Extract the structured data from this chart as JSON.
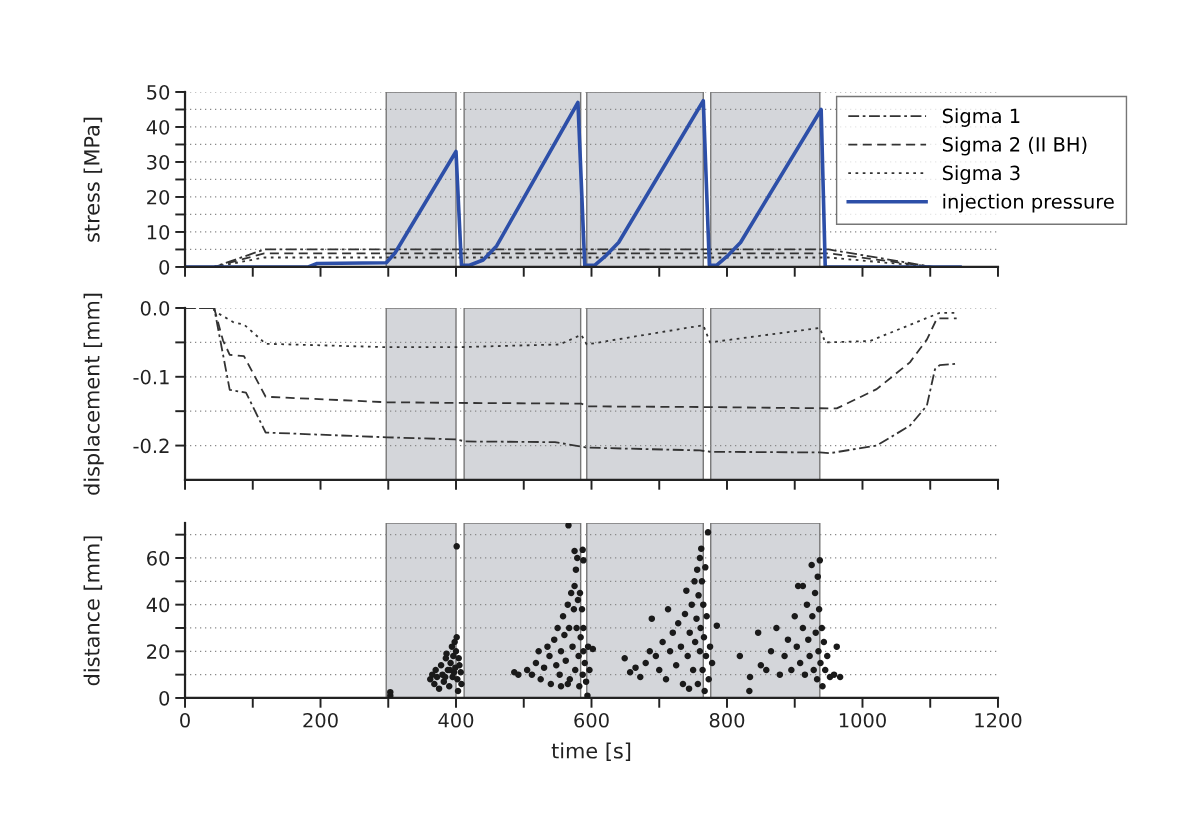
{
  "chart_data": [
    {
      "type": "line",
      "ylabel": "stress [MPa]",
      "xlim": [
        0,
        1200
      ],
      "ylim": [
        0,
        50
      ],
      "xticks": [
        {
          "value": 0,
          "label": null
        },
        {
          "value": 100,
          "label": null
        },
        {
          "value": 200,
          "label": null
        },
        {
          "value": 300,
          "label": null
        },
        {
          "value": 400,
          "label": null
        },
        {
          "value": 500,
          "label": null
        },
        {
          "value": 600,
          "label": null
        },
        {
          "value": 700,
          "label": null
        },
        {
          "value": 800,
          "label": null
        },
        {
          "value": 900,
          "label": null
        },
        {
          "value": 1000,
          "label": null
        },
        {
          "value": 1100,
          "label": null
        },
        {
          "value": 1200,
          "label": null
        }
      ],
      "yticks": [
        0,
        {
          "value": 5,
          "label": null
        },
        10,
        {
          "value": 15,
          "label": null
        },
        20,
        {
          "value": 25,
          "label": null
        },
        30,
        {
          "value": 35,
          "label": null
        },
        40,
        {
          "value": 45,
          "label": null
        },
        50
      ],
      "tick_labels": "y",
      "grid": "y",
      "legend": "top right",
      "bands": [
        {
          "axis": "x",
          "from": 297,
          "to": 400,
          "color": "#d4d6da"
        },
        {
          "axis": "x",
          "from": 412,
          "to": 584,
          "color": "#d4d6da"
        },
        {
          "axis": "x",
          "from": 593,
          "to": 765,
          "color": "#d4d6da"
        },
        {
          "axis": "x",
          "from": 776,
          "to": 937,
          "color": "#d4d6da"
        }
      ],
      "series": [
        {
          "name": "Sigma 1",
          "color": "#333333",
          "line_style": "dashdot",
          "x": [
            0,
            43,
            117,
            950,
            1104,
            1140
          ],
          "values": [
            0,
            0,
            5.0,
            5.0,
            0,
            0
          ]
        },
        {
          "name": "Sigma 2 (II BH)",
          "color": "#333333",
          "line_style": "dashed",
          "x": [
            0,
            43,
            117,
            950,
            1104,
            1140
          ],
          "values": [
            0,
            0,
            3.9,
            3.9,
            0,
            0
          ]
        },
        {
          "name": "Sigma 3",
          "color": "#333333",
          "line_style": "dotted",
          "x": [
            0,
            43,
            117,
            950,
            1104,
            1140
          ],
          "values": [
            0,
            0,
            2.7,
            2.7,
            0,
            0
          ]
        },
        {
          "name": "injection pressure",
          "color": "#2d4fa8",
          "line_style": "solid",
          "x": [
            0,
            182,
            195,
            297,
            310,
            400,
            408,
            420,
            440,
            460,
            580,
            590,
            605,
            620,
            640,
            765,
            774,
            785,
            800,
            820,
            939,
            945,
            1144
          ],
          "values": [
            0,
            0,
            1,
            1.2,
            4,
            33,
            0.5,
            0.5,
            2,
            6,
            47,
            0.5,
            0.5,
            3,
            7,
            47.5,
            0.5,
            0.5,
            3,
            7,
            45,
            0,
            0
          ]
        }
      ]
    },
    {
      "type": "line",
      "ylabel": "displacement [mm]",
      "xlim": [
        0,
        1200
      ],
      "ylim": [
        -0.25,
        0.0
      ],
      "xticks": [
        {
          "value": 0,
          "label": null
        },
        {
          "value": 100,
          "label": null
        },
        {
          "value": 200,
          "label": null
        },
        {
          "value": 300,
          "label": null
        },
        {
          "value": 400,
          "label": null
        },
        {
          "value": 500,
          "label": null
        },
        {
          "value": 600,
          "label": null
        },
        {
          "value": 700,
          "label": null
        },
        {
          "value": 800,
          "label": null
        },
        {
          "value": 900,
          "label": null
        },
        {
          "value": 1000,
          "label": null
        },
        {
          "value": 1100,
          "label": null
        },
        {
          "value": 1200,
          "label": null
        }
      ],
      "yticks": [
        {
          "value": -0.2,
          "label": "-0.2"
        },
        {
          "value": -0.15,
          "label": null
        },
        {
          "value": -0.1,
          "label": "-0.1"
        },
        {
          "value": -0.05,
          "label": null
        },
        {
          "value": 0.0,
          "label": "0.0"
        }
      ],
      "tick_labels": "y",
      "grid": "y",
      "bands": [
        {
          "axis": "x",
          "from": 297,
          "to": 400,
          "color": "#d4d6da"
        },
        {
          "axis": "x",
          "from": 412,
          "to": 584,
          "color": "#d4d6da"
        },
        {
          "axis": "x",
          "from": 593,
          "to": 765,
          "color": "#d4d6da"
        },
        {
          "axis": "x",
          "from": 776,
          "to": 937,
          "color": "#d4d6da"
        }
      ],
      "series": [
        {
          "color": "#333333",
          "line_style": "dashdot",
          "x": [
            0,
            43,
            66,
            90,
            119,
            298,
            399,
            414,
            546,
            588,
            593,
            760,
            775,
            937,
            952,
            1021,
            1070,
            1095,
            1107,
            1114,
            1139
          ],
          "values": [
            0,
            0,
            -0.119,
            -0.123,
            -0.181,
            -0.188,
            -0.191,
            -0.194,
            -0.195,
            -0.202,
            -0.203,
            -0.207,
            -0.209,
            -0.21,
            -0.211,
            -0.2,
            -0.171,
            -0.142,
            -0.089,
            -0.083,
            -0.081
          ]
        },
        {
          "color": "#333333",
          "line_style": "dashed",
          "x": [
            0,
            43,
            56,
            66,
            87,
            119,
            298,
            404,
            585,
            593,
            770,
            962,
            1021,
            1070,
            1095,
            1110,
            1139
          ],
          "values": [
            0,
            0,
            -0.047,
            -0.068,
            -0.07,
            -0.129,
            -0.137,
            -0.138,
            -0.139,
            -0.143,
            -0.144,
            -0.146,
            -0.118,
            -0.079,
            -0.046,
            -0.015,
            -0.015
          ]
        },
        {
          "color": "#333333",
          "line_style": "dotted",
          "x": [
            0,
            40,
            46,
            72,
            87,
            119,
            300,
            400,
            553,
            585,
            593,
            765,
            775,
            937,
            945,
            1011,
            1114,
            1139
          ],
          "values": [
            0,
            0,
            -0.006,
            -0.021,
            -0.024,
            -0.052,
            -0.057,
            -0.057,
            -0.053,
            -0.039,
            -0.053,
            -0.025,
            -0.05,
            -0.029,
            -0.05,
            -0.048,
            -0.007,
            -0.007
          ]
        }
      ]
    },
    {
      "type": "scatter",
      "xlabel": "time [s]",
      "ylabel": "distance [mm]",
      "xlim": [
        0,
        1200
      ],
      "ylim": [
        0,
        75
      ],
      "xticks": [
        0,
        {
          "value": 100,
          "label": null
        },
        200,
        {
          "value": 300,
          "label": null
        },
        400,
        {
          "value": 500,
          "label": null
        },
        600,
        {
          "value": 700,
          "label": null
        },
        800,
        {
          "value": 900,
          "label": null
        },
        1000,
        {
          "value": 1100,
          "label": null
        },
        1200
      ],
      "yticks": [
        0,
        {
          "value": 10,
          "label": null
        },
        20,
        {
          "value": 30,
          "label": null
        },
        40,
        {
          "value": 50,
          "label": null
        },
        60,
        {
          "value": 70,
          "label": null
        }
      ],
      "grid": "y",
      "marker": "circle",
      "bands": [
        {
          "axis": "x",
          "from": 297,
          "to": 400,
          "color": "#d4d6da"
        },
        {
          "axis": "x",
          "from": 412,
          "to": 584,
          "color": "#d4d6da"
        },
        {
          "axis": "x",
          "from": 593,
          "to": 765,
          "color": "#d4d6da"
        },
        {
          "axis": "x",
          "from": 776,
          "to": 937,
          "color": "#d4d6da"
        }
      ],
      "series": [
        {
          "color": "#1a1a1a",
          "x": [
            303,
            303,
            362,
            365,
            368,
            370,
            372,
            375,
            378,
            380,
            382,
            385,
            386,
            388,
            390,
            392,
            394,
            395,
            396,
            398,
            399,
            400,
            401,
            401,
            402,
            403,
            405,
            407,
            408,
            404,
            397,
            391,
            384,
            486,
            492,
            505,
            512,
            518,
            522,
            525,
            530,
            535,
            538,
            540,
            545,
            548,
            550,
            553,
            555,
            558,
            560,
            562,
            565,
            567,
            568,
            566,
            570,
            572,
            574,
            575,
            576,
            577,
            575,
            578,
            579,
            580,
            581,
            582,
            587,
            584,
            588,
            586,
            587,
            588,
            590,
            592,
            594,
            595,
            597,
            583,
            588,
            565,
            555,
            602,
            649,
            657,
            665,
            672,
            680,
            686,
            689,
            695,
            700,
            705,
            710,
            713,
            716,
            720,
            725,
            728,
            732,
            735,
            738,
            740,
            742,
            745,
            748,
            750,
            752,
            753,
            755,
            756,
            757,
            758,
            760,
            760,
            761,
            762,
            763,
            764,
            765,
            766,
            767,
            768,
            769,
            770,
            772,
            773,
            775,
            778,
            785,
            744,
            819,
            833,
            834,
            846,
            850,
            858,
            865,
            873,
            878,
            885,
            890,
            895,
            900,
            903,
            905,
            908,
            912,
            915,
            918,
            920,
            922,
            925,
            926,
            928,
            930,
            931,
            933,
            934,
            935,
            936,
            937,
            938,
            940,
            941,
            943,
            945,
            948,
            952,
            958,
            962,
            967,
            912
          ],
          "values": [
            1,
            2.5,
            8,
            10,
            6,
            12,
            9,
            4,
            14,
            10,
            7,
            17,
            19,
            12,
            5,
            15,
            22,
            9,
            18,
            24,
            13,
            20,
            26,
            65,
            8,
            3,
            14,
            11,
            6,
            17,
            11,
            12,
            9,
            11,
            10,
            12,
            10,
            15,
            20,
            8,
            13,
            22,
            18,
            6,
            25,
            14,
            30,
            10,
            20,
            35,
            27,
            16,
            40,
            30,
            8,
            74,
            45,
            22,
            38,
            48,
            12,
            55,
            63,
            30,
            60,
            42,
            18,
            5,
            63.5,
            26,
            59,
            38,
            10,
            30,
            15,
            7,
            1,
            22,
            12,
            45,
            20,
            6,
            5,
            21,
            17,
            11,
            13,
            9,
            15,
            20,
            34,
            18,
            12,
            24,
            8,
            38,
            20,
            28,
            14,
            32,
            22,
            6,
            36,
            46,
            18,
            28,
            40,
            12,
            50,
            24,
            34,
            55,
            6,
            44,
            20,
            60,
            30,
            64,
            50,
            12,
            40,
            26,
            3,
            56,
            18,
            35,
            71,
            8,
            22,
            15,
            31,
            4,
            18,
            3,
            9,
            28,
            14,
            12,
            20,
            30,
            10,
            18,
            25,
            12,
            35,
            22,
            48,
            15,
            30,
            10,
            40,
            25,
            18,
            57,
            35,
            12,
            45,
            28,
            8,
            52,
            20,
            38,
            59,
            15,
            30,
            5,
            24,
            12,
            18,
            9,
            10,
            22,
            9,
            48
          ]
        }
      ]
    }
  ]
}
